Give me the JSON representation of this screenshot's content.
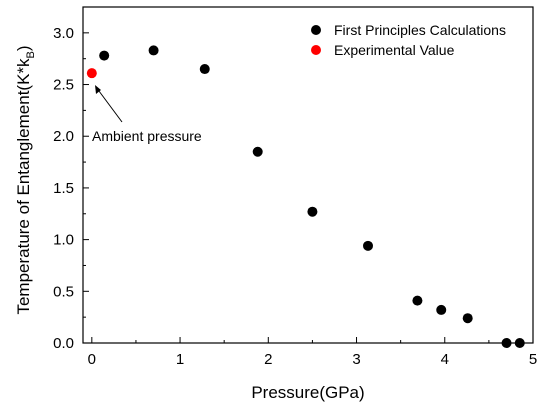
{
  "chart_data": {
    "type": "scatter",
    "title": "",
    "xlabel": "Pressure(GPa)",
    "ylabel": "Temperature of Entanglement(K*k",
    "ylabel_subscript": "B",
    "ylabel_close": ")",
    "xlim": [
      -0.1,
      5.0
    ],
    "ylim": [
      0.0,
      3.25
    ],
    "xticks": [
      0,
      1,
      2,
      3,
      4,
      5
    ],
    "xtick_labels": [
      "0",
      "1",
      "2",
      "3",
      "4",
      "5"
    ],
    "yticks": [
      0.0,
      0.5,
      1.0,
      1.5,
      2.0,
      2.5,
      3.0
    ],
    "ytick_labels": [
      "0.0",
      "0.5",
      "1.0",
      "1.5",
      "2.0",
      "2.5",
      "3.0"
    ],
    "grid": false,
    "legend_position": "top-right",
    "series": [
      {
        "name": "First Principles Calculations",
        "color": "#000000",
        "x": [
          0.14,
          0.7,
          1.28,
          1.88,
          2.5,
          3.13,
          3.69,
          3.96,
          4.26,
          4.7,
          4.85
        ],
        "y": [
          2.78,
          2.83,
          2.65,
          1.85,
          1.27,
          0.94,
          0.41,
          0.32,
          0.24,
          0.0,
          0.0
        ]
      },
      {
        "name": "Experimental Value",
        "color": "#ff0000",
        "x": [
          0.0
        ],
        "y": [
          2.61
        ]
      }
    ],
    "annotations": [
      {
        "text": "Ambient pressure",
        "target_x": 0.0,
        "target_y": 2.61
      }
    ]
  }
}
